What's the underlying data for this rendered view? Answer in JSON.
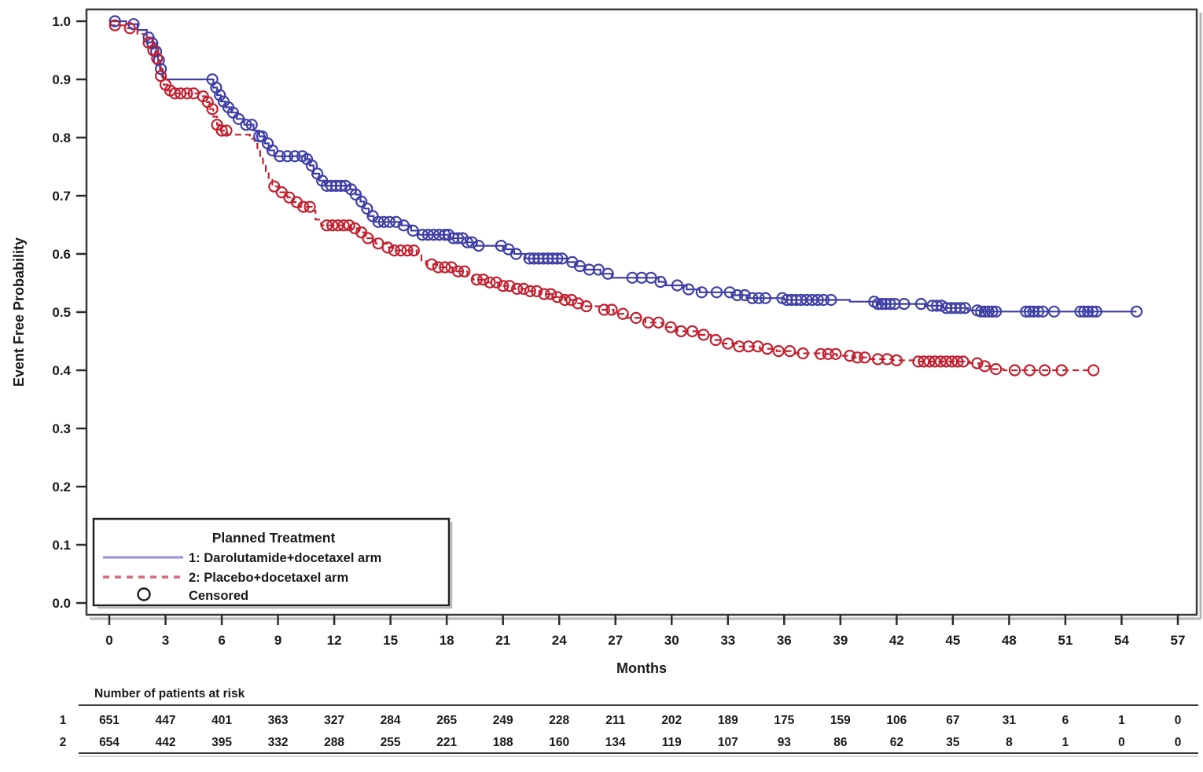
{
  "chart_data": {
    "type": "line",
    "subtype": "kaplan-meier-step",
    "title": "",
    "xlabel": "Months",
    "ylabel": "Event Free Probability",
    "xlim": [
      0,
      57
    ],
    "ylim": [
      0.0,
      1.0
    ],
    "xticks": [
      0,
      3,
      6,
      9,
      12,
      15,
      18,
      21,
      24,
      27,
      30,
      33,
      36,
      39,
      42,
      45,
      48,
      51,
      54,
      57
    ],
    "ytick_labels": [
      "0.0",
      "0.1",
      "0.2",
      "0.3",
      "0.4",
      "0.5",
      "0.6",
      "0.7",
      "0.8",
      "0.9",
      "1.0"
    ],
    "grid": false,
    "legend": {
      "title": "Planned Treatment",
      "censored_label": "Censored",
      "position": "bottom-left"
    },
    "series": [
      {
        "id": "1",
        "name": "1: Darolutamide+docetaxel arm",
        "style": "solid",
        "color": "#3f3fa6",
        "legend_color": "#9a9ad8",
        "steps": [
          [
            0,
            1.0
          ],
          [
            0.9,
            0.995
          ],
          [
            1.5,
            0.985
          ],
          [
            2.0,
            0.972
          ],
          [
            2.3,
            0.962
          ],
          [
            2.5,
            0.948
          ],
          [
            2.6,
            0.933
          ],
          [
            2.7,
            0.918
          ],
          [
            2.85,
            0.903
          ],
          [
            3.0,
            0.9
          ],
          [
            5.45,
            0.9
          ],
          [
            5.55,
            0.886
          ],
          [
            5.75,
            0.873
          ],
          [
            5.95,
            0.862
          ],
          [
            6.2,
            0.852
          ],
          [
            6.5,
            0.843
          ],
          [
            6.8,
            0.832
          ],
          [
            7.2,
            0.822
          ],
          [
            7.7,
            0.812
          ],
          [
            8.0,
            0.802
          ],
          [
            8.3,
            0.79
          ],
          [
            8.5,
            0.778
          ],
          [
            8.8,
            0.768
          ],
          [
            10.45,
            0.763
          ],
          [
            10.7,
            0.752
          ],
          [
            10.9,
            0.738
          ],
          [
            11.2,
            0.726
          ],
          [
            11.5,
            0.717
          ],
          [
            12.85,
            0.711
          ],
          [
            13.15,
            0.702
          ],
          [
            13.4,
            0.69
          ],
          [
            13.6,
            0.678
          ],
          [
            13.85,
            0.665
          ],
          [
            14.1,
            0.655
          ],
          [
            15.6,
            0.649
          ],
          [
            16.1,
            0.64
          ],
          [
            16.5,
            0.633
          ],
          [
            18.2,
            0.627
          ],
          [
            19.0,
            0.62
          ],
          [
            19.6,
            0.614
          ],
          [
            21.0,
            0.608
          ],
          [
            21.6,
            0.6
          ],
          [
            22.2,
            0.592
          ],
          [
            24.4,
            0.586
          ],
          [
            24.9,
            0.579
          ],
          [
            25.4,
            0.573
          ],
          [
            26.2,
            0.566
          ],
          [
            26.8,
            0.559
          ],
          [
            29.3,
            0.552
          ],
          [
            29.7,
            0.546
          ],
          [
            30.8,
            0.539
          ],
          [
            31.5,
            0.534
          ],
          [
            33.2,
            0.529
          ],
          [
            34.0,
            0.524
          ],
          [
            36.0,
            0.521
          ],
          [
            39.5,
            0.518
          ],
          [
            41.0,
            0.514
          ],
          [
            43.5,
            0.511
          ],
          [
            44.5,
            0.507
          ],
          [
            45.8,
            0.503
          ],
          [
            46.5,
            0.501
          ],
          [
            54.8,
            0.501
          ]
        ],
        "censor_months": [
          0.3,
          1.3,
          2.1,
          2.3,
          2.5,
          2.65,
          2.75,
          5.5,
          5.7,
          5.9,
          6.1,
          6.35,
          6.6,
          6.9,
          7.3,
          7.6,
          8.0,
          8.15,
          8.45,
          8.7,
          9.1,
          9.5,
          9.9,
          10.3,
          10.55,
          10.8,
          11.1,
          11.35,
          11.6,
          11.85,
          12.1,
          12.35,
          12.6,
          12.9,
          13.15,
          13.45,
          13.75,
          14.05,
          14.35,
          14.65,
          14.95,
          15.3,
          15.7,
          16.2,
          16.7,
          17.0,
          17.3,
          17.6,
          17.9,
          18.1,
          18.35,
          18.6,
          18.85,
          19.1,
          19.35,
          19.7,
          20.9,
          21.3,
          21.7,
          22.4,
          22.65,
          22.9,
          23.15,
          23.4,
          23.65,
          23.9,
          24.15,
          24.7,
          25.1,
          25.6,
          26.1,
          26.6,
          27.9,
          28.4,
          28.9,
          29.4,
          30.3,
          30.9,
          31.6,
          32.4,
          33.1,
          33.5,
          33.9,
          34.3,
          34.65,
          35.0,
          35.9,
          36.15,
          36.4,
          36.65,
          36.9,
          37.2,
          37.5,
          37.8,
          38.1,
          38.5,
          40.8,
          41.0,
          41.2,
          41.4,
          41.65,
          41.9,
          42.4,
          43.3,
          43.9,
          44.15,
          44.4,
          44.65,
          44.9,
          45.15,
          45.4,
          45.65,
          46.3,
          46.5,
          46.7,
          46.9,
          47.1,
          47.3,
          48.9,
          49.1,
          49.3,
          49.55,
          49.8,
          50.4,
          51.8,
          52.0,
          52.2,
          52.45,
          52.65,
          54.8
        ]
      },
      {
        "id": "2",
        "name": "2: Placebo+docetaxel arm",
        "style": "dashed",
        "color": "#c2202e",
        "legend_color": "#d4687a",
        "steps": [
          [
            0,
            0.993
          ],
          [
            0.9,
            0.988
          ],
          [
            1.5,
            0.978
          ],
          [
            2.0,
            0.963
          ],
          [
            2.3,
            0.95
          ],
          [
            2.45,
            0.936
          ],
          [
            2.6,
            0.921
          ],
          [
            2.75,
            0.906
          ],
          [
            2.9,
            0.891
          ],
          [
            3.1,
            0.881
          ],
          [
            3.3,
            0.876
          ],
          [
            4.9,
            0.871
          ],
          [
            5.15,
            0.861
          ],
          [
            5.35,
            0.849
          ],
          [
            5.55,
            0.836
          ],
          [
            5.75,
            0.822
          ],
          [
            5.95,
            0.812
          ],
          [
            6.3,
            0.805
          ],
          [
            7.5,
            0.798
          ],
          [
            7.75,
            0.789
          ],
          [
            7.9,
            0.779
          ],
          [
            8.05,
            0.767
          ],
          [
            8.2,
            0.755
          ],
          [
            8.35,
            0.742
          ],
          [
            8.5,
            0.729
          ],
          [
            8.7,
            0.716
          ],
          [
            9.0,
            0.706
          ],
          [
            9.5,
            0.697
          ],
          [
            9.8,
            0.689
          ],
          [
            10.1,
            0.681
          ],
          [
            10.8,
            0.674
          ],
          [
            11.0,
            0.659
          ],
          [
            11.3,
            0.649
          ],
          [
            12.9,
            0.644
          ],
          [
            13.3,
            0.637
          ],
          [
            13.7,
            0.627
          ],
          [
            14.2,
            0.618
          ],
          [
            14.8,
            0.611
          ],
          [
            15.2,
            0.606
          ],
          [
            16.4,
            0.598
          ],
          [
            16.65,
            0.589
          ],
          [
            16.9,
            0.582
          ],
          [
            17.5,
            0.577
          ],
          [
            18.3,
            0.57
          ],
          [
            19.1,
            0.562
          ],
          [
            19.4,
            0.556
          ],
          [
            20.0,
            0.551
          ],
          [
            20.8,
            0.545
          ],
          [
            21.6,
            0.54
          ],
          [
            22.3,
            0.536
          ],
          [
            23.0,
            0.531
          ],
          [
            23.6,
            0.526
          ],
          [
            24.3,
            0.521
          ],
          [
            24.9,
            0.515
          ],
          [
            25.3,
            0.51
          ],
          [
            26.3,
            0.504
          ],
          [
            26.9,
            0.497
          ],
          [
            27.6,
            0.49
          ],
          [
            28.6,
            0.482
          ],
          [
            29.5,
            0.474
          ],
          [
            30.3,
            0.467
          ],
          [
            31.4,
            0.461
          ],
          [
            32.1,
            0.452
          ],
          [
            32.7,
            0.446
          ],
          [
            33.6,
            0.441
          ],
          [
            34.7,
            0.437
          ],
          [
            35.6,
            0.433
          ],
          [
            36.6,
            0.429
          ],
          [
            37.9,
            0.428
          ],
          [
            38.8,
            0.425
          ],
          [
            39.7,
            0.422
          ],
          [
            40.6,
            0.419
          ],
          [
            41.8,
            0.417
          ],
          [
            43.0,
            0.415
          ],
          [
            45.9,
            0.412
          ],
          [
            46.4,
            0.407
          ],
          [
            47.1,
            0.402
          ],
          [
            47.7,
            0.4
          ],
          [
            52.5,
            0.4
          ]
        ],
        "censor_months": [
          0.3,
          1.1,
          2.1,
          2.35,
          2.55,
          2.75,
          3.0,
          3.25,
          3.5,
          3.8,
          4.15,
          4.5,
          5.0,
          5.25,
          5.5,
          5.75,
          6.0,
          6.25,
          8.8,
          9.2,
          9.6,
          10.0,
          10.35,
          10.7,
          11.6,
          11.9,
          12.2,
          12.5,
          12.8,
          13.1,
          13.45,
          13.8,
          14.35,
          14.85,
          15.2,
          15.55,
          15.9,
          16.25,
          17.2,
          17.55,
          17.9,
          18.25,
          18.6,
          18.95,
          19.6,
          19.95,
          20.3,
          20.65,
          21.0,
          21.35,
          21.75,
          22.1,
          22.45,
          22.8,
          23.2,
          23.55,
          23.9,
          24.3,
          24.65,
          25.0,
          25.45,
          26.4,
          26.8,
          27.4,
          28.1,
          28.75,
          29.3,
          29.95,
          30.5,
          31.1,
          31.7,
          32.35,
          33.0,
          33.6,
          34.1,
          34.6,
          35.1,
          35.7,
          36.3,
          37.0,
          37.95,
          38.35,
          38.75,
          39.5,
          39.9,
          40.3,
          41.0,
          41.5,
          42.0,
          43.15,
          43.45,
          43.75,
          44.05,
          44.35,
          44.65,
          44.95,
          45.25,
          45.55,
          46.3,
          46.7,
          47.3,
          48.3,
          49.1,
          49.9,
          50.8,
          52.5
        ]
      }
    ],
    "risk_table": {
      "header": "Number of patients at risk",
      "months": [
        0,
        3,
        6,
        9,
        12,
        15,
        18,
        21,
        24,
        27,
        30,
        33,
        36,
        39,
        42,
        45,
        48,
        51,
        54,
        57
      ],
      "rows": [
        {
          "label": "1",
          "values": [
            651,
            447,
            401,
            363,
            327,
            284,
            265,
            249,
            228,
            211,
            202,
            189,
            175,
            159,
            106,
            67,
            31,
            6,
            1,
            0
          ]
        },
        {
          "label": "2",
          "values": [
            654,
            442,
            395,
            332,
            288,
            255,
            221,
            188,
            160,
            134,
            119,
            107,
            93,
            86,
            62,
            35,
            8,
            1,
            0,
            0
          ]
        }
      ]
    }
  }
}
